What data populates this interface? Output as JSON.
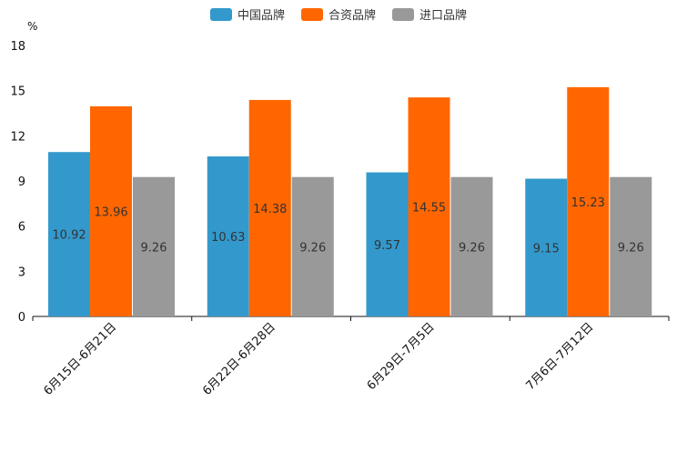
{
  "chart_data": {
    "type": "bar",
    "unit": "%",
    "categories": [
      "6月15日-6月21日",
      "6月22日-6月28日",
      "6月29日-7月5日",
      "7月6日-7月12日"
    ],
    "series": [
      {
        "name": "中国品牌",
        "color": "#3399CC",
        "values": [
          10.92,
          10.63,
          9.57,
          9.15
        ]
      },
      {
        "name": "合资品牌",
        "color": "#FF6600",
        "values": [
          13.96,
          14.38,
          14.55,
          15.23
        ]
      },
      {
        "name": "进口品牌",
        "color": "#999999",
        "values": [
          9.26,
          9.26,
          9.26,
          9.26
        ]
      }
    ],
    "yticks": [
      0,
      3,
      6,
      9,
      12,
      15,
      18
    ],
    "ylim": [
      0,
      18
    ],
    "legend_position": "top-center"
  }
}
